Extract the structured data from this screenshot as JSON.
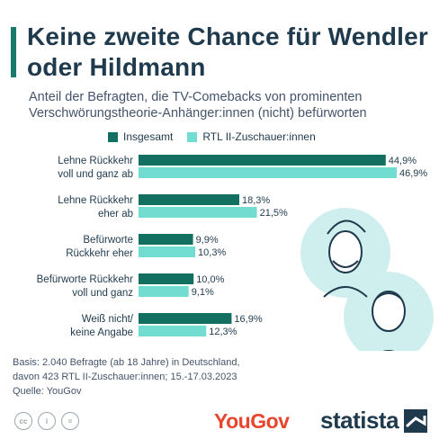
{
  "title": "Keine zweite Chance für Wendler oder Hildmann",
  "subtitle": "Anteil der Befragten, die TV-Comebacks von prominenten Verschwörungstheorie-Anhänger:innen (nicht) befürworten",
  "footer": {
    "basis_line1": "Basis: 2.040 Befragte (ab 18 Jahre) in Deutschland,",
    "basis_line2": "davon 423 RTL II-Zuschauer:innen; 15.-17.03.2023",
    "source": "Quelle: YouGov"
  },
  "branding": {
    "yougov": "YouGov",
    "statista": "statista"
  },
  "colors": {
    "series_1": "#136f5f",
    "series_2": "#73dcd0",
    "title": "#1f3a4d",
    "accent": "#1a7a6a",
    "yougov": "#e8452c"
  },
  "chart_data": {
    "type": "bar",
    "orientation": "horizontal",
    "categories": [
      [
        "Lehne Rückkehr",
        "voll und ganz ab"
      ],
      [
        "Lehne Rückkehr",
        "eher ab"
      ],
      [
        "Befürworte",
        "Rückkehr eher"
      ],
      [
        "Befürworte Rückkehr",
        "voll und ganz"
      ],
      [
        "Weiß nicht/",
        "keine Angabe"
      ]
    ],
    "series": [
      {
        "name": "Insgesamt",
        "values": [
          44.9,
          18.3,
          9.9,
          10.0,
          16.9
        ],
        "labels": [
          "44,9%",
          "18,3%",
          "9,9%",
          "10,0%",
          "16,9%"
        ]
      },
      {
        "name": "RTL II-Zuschauer:innen",
        "values": [
          46.9,
          21.5,
          10.3,
          9.1,
          12.3
        ],
        "labels": [
          "46,9%",
          "21,5%",
          "10,3%",
          "9,1%",
          "12,3%"
        ]
      }
    ],
    "xlim": [
      0,
      50
    ],
    "grid": false,
    "legend_position": "top"
  }
}
